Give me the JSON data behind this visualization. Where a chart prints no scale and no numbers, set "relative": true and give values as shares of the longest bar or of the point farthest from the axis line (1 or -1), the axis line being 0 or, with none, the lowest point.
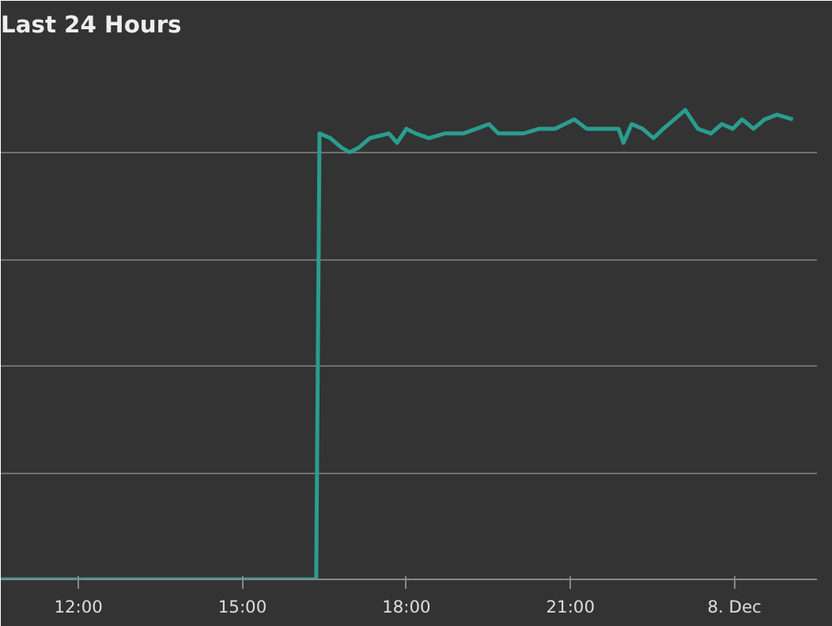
{
  "chart_data": {
    "type": "line",
    "title": "Last 24 Hours",
    "relative": true,
    "grid": "y",
    "marker": "none",
    "line_style": "solid",
    "x": [
      10.58,
      16.35,
      16.41,
      16.61,
      16.81,
      16.96,
      17.13,
      17.33,
      17.68,
      17.83,
      18.0,
      18.17,
      18.41,
      18.7,
      19.04,
      19.28,
      19.51,
      19.68,
      19.86,
      20.14,
      20.43,
      20.72,
      21.07,
      21.3,
      21.59,
      21.88,
      21.97,
      22.12,
      22.32,
      22.52,
      22.7,
      22.9,
      23.1,
      23.33,
      23.57,
      23.77,
      23.97,
      24.14,
      24.35,
      24.55,
      24.78,
      25.07
    ],
    "xlim": [
      10.58,
      25.51
    ],
    "xticks": [
      {
        "value": 12,
        "label": "12:00"
      },
      {
        "value": 15,
        "label": "15:00"
      },
      {
        "value": 18,
        "label": "18:00"
      },
      {
        "value": 21,
        "label": "21:00"
      },
      {
        "value": 24,
        "label": "8. Dec"
      }
    ],
    "series": [
      {
        "color": "#2a9d8f",
        "values": [
          0,
          0,
          0.95,
          0.94,
          0.92,
          0.91,
          0.92,
          0.94,
          0.95,
          0.93,
          0.96,
          0.95,
          0.94,
          0.95,
          0.95,
          0.96,
          0.97,
          0.95,
          0.95,
          0.95,
          0.96,
          0.96,
          0.98,
          0.96,
          0.96,
          0.96,
          0.93,
          0.97,
          0.96,
          0.94,
          0.96,
          0.98,
          1.0,
          0.96,
          0.95,
          0.97,
          0.96,
          0.98,
          0.96,
          0.98,
          0.99,
          0.98
        ]
      }
    ]
  }
}
